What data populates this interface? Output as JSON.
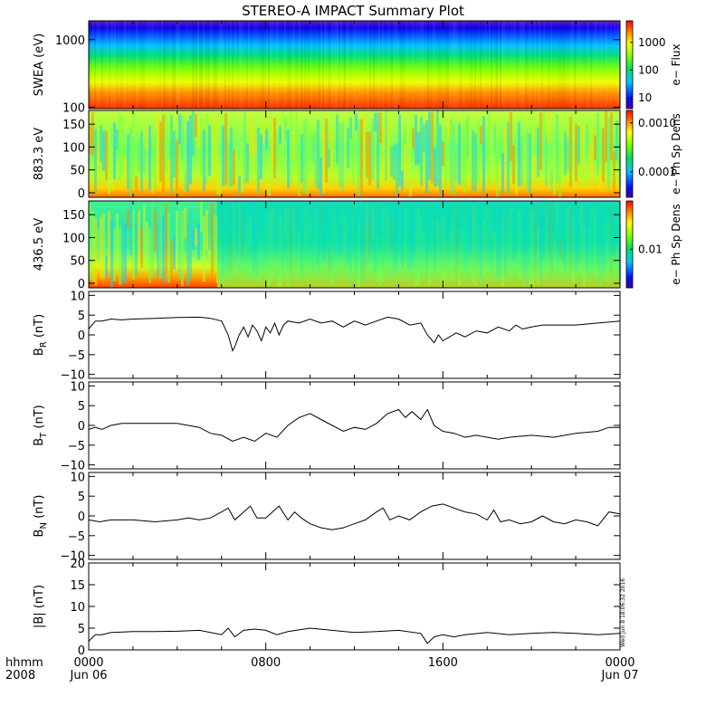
{
  "title": "STEREO-A IMPACT Summary Plot",
  "stamp": "Wed Jun  8 18:06:32 2016",
  "time_axis": {
    "left_label_1": "hhmm",
    "left_label_2": "2008",
    "range_hours": [
      0,
      24
    ],
    "ticks": [
      {
        "hour": 0,
        "label": "0000",
        "sublabel": "Jun 06"
      },
      {
        "hour": 8,
        "label": "0800",
        "sublabel": ""
      },
      {
        "hour": 16,
        "label": "1600",
        "sublabel": ""
      },
      {
        "hour": 24,
        "label": "0000",
        "sublabel": "Jun 07"
      }
    ]
  },
  "chart_data": [
    {
      "type": "heatmap",
      "id": "swea",
      "ylabel": "SWEA (eV)",
      "yscale": "log",
      "ylim": [
        95,
        1900
      ],
      "yticks": [
        {
          "v": 100,
          "label": "100"
        },
        {
          "v": 1000,
          "label": "1000"
        }
      ],
      "colorbar": {
        "label": "e− Flux",
        "scale": "log",
        "range": [
          4,
          6000
        ],
        "ticks": [
          {
            "v": 10,
            "label": "10"
          },
          {
            "v": 100,
            "label": "100"
          },
          {
            "v": 1000,
            "label": "1000"
          }
        ]
      }
    },
    {
      "type": "heatmap",
      "id": "pad883",
      "ylabel": "883.3 eV",
      "yscale": "linear",
      "ylim": [
        -10,
        180
      ],
      "yticks": [
        {
          "v": 0,
          "label": "0"
        },
        {
          "v": 50,
          "label": "50"
        },
        {
          "v": 100,
          "label": "100"
        },
        {
          "v": 150,
          "label": "150"
        }
      ],
      "colorbar": {
        "label": "e− Ph Sp Dens",
        "scale": "log",
        "range": [
          3e-05,
          0.0018
        ],
        "ticks": [
          {
            "v": 0.0001,
            "label": "0.0001"
          },
          {
            "v": 0.001,
            "label": "0.0010"
          }
        ]
      }
    },
    {
      "type": "heatmap",
      "id": "pad436",
      "ylabel": "436.5 eV",
      "yscale": "linear",
      "ylim": [
        -10,
        180
      ],
      "yticks": [
        {
          "v": 0,
          "label": "0"
        },
        {
          "v": 50,
          "label": "50"
        },
        {
          "v": 100,
          "label": "100"
        },
        {
          "v": 150,
          "label": "150"
        }
      ],
      "colorbar": {
        "label": "e− Ph Sp Dens",
        "scale": "log",
        "range": [
          0.003,
          0.045
        ],
        "ticks": [
          {
            "v": 0.01,
            "label": "0.01"
          }
        ]
      }
    },
    {
      "type": "line",
      "id": "br",
      "ylabel": "BR",
      "ylabel_main": "B",
      "ylabel_sub": "R",
      "ylabel_unit": " (nT)",
      "ylim": [
        -11,
        11
      ],
      "yticks": [
        {
          "v": -10,
          "label": "−10"
        },
        {
          "v": -5,
          "label": "−5"
        },
        {
          "v": 0,
          "label": "0"
        },
        {
          "v": 5,
          "label": "5"
        },
        {
          "v": 10,
          "label": "10"
        }
      ],
      "x": [
        0,
        0.3,
        0.6,
        1,
        1.5,
        2,
        3,
        4,
        5,
        5.5,
        6,
        6.3,
        6.5,
        6.6,
        6.8,
        7,
        7.2,
        7.4,
        7.6,
        7.8,
        8,
        8.2,
        8.4,
        8.6,
        8.8,
        9,
        9.5,
        10,
        10.5,
        11,
        11.5,
        12,
        12.5,
        13,
        13.5,
        14,
        14.5,
        15,
        15.3,
        15.6,
        15.8,
        16,
        16.3,
        16.6,
        17,
        17.5,
        18,
        18.5,
        19,
        19.3,
        19.6,
        20,
        20.5,
        21,
        22,
        23,
        24
      ],
      "y": [
        1.5,
        3.5,
        3.5,
        4,
        3.8,
        4,
        4.2,
        4.4,
        4.5,
        4.2,
        3.5,
        0,
        -4,
        -3,
        0,
        2,
        -0.5,
        2.5,
        1,
        -1.5,
        2,
        0.5,
        3,
        0,
        2.5,
        3.5,
        3,
        4,
        3,
        3.5,
        2,
        3.5,
        2.5,
        3.5,
        4.5,
        4,
        2.5,
        3,
        0,
        -2,
        0,
        -1.5,
        -0.5,
        0.5,
        -0.5,
        1,
        0.5,
        2,
        1,
        2.5,
        1.5,
        2,
        2.5,
        2.5,
        2.5,
        3,
        3.5
      ]
    },
    {
      "type": "line",
      "id": "bt",
      "ylabel": "BT",
      "ylabel_main": "B",
      "ylabel_sub": "T",
      "ylabel_unit": " (nT)",
      "ylim": [
        -11,
        11
      ],
      "yticks": [
        {
          "v": -10,
          "label": "−10"
        },
        {
          "v": -5,
          "label": "−5"
        },
        {
          "v": 0,
          "label": "0"
        },
        {
          "v": 5,
          "label": "5"
        },
        {
          "v": 10,
          "label": "10"
        }
      ],
      "x": [
        0,
        0.3,
        0.6,
        1,
        1.5,
        2,
        3,
        4,
        4.5,
        5,
        5.5,
        6,
        6.5,
        7,
        7.5,
        8,
        8.5,
        9,
        9.5,
        10,
        10.5,
        11,
        11.5,
        12,
        12.5,
        13,
        13.5,
        14,
        14.3,
        14.6,
        15,
        15.3,
        15.6,
        16,
        16.5,
        17,
        17.5,
        18,
        18.5,
        19,
        20,
        21,
        22,
        23,
        23.5,
        24
      ],
      "y": [
        -1,
        -0.5,
        -1,
        0,
        0.5,
        0.5,
        0.5,
        0.5,
        0,
        -0.5,
        -2,
        -2.5,
        -4,
        -3,
        -4,
        -2,
        -3,
        0,
        2,
        3,
        1.5,
        0,
        -1.5,
        -0.5,
        -1,
        0.5,
        3,
        4,
        2,
        3.5,
        1.5,
        4,
        0,
        -1.5,
        -2,
        -3,
        -2.5,
        -3,
        -3.5,
        -3,
        -2.5,
        -3,
        -2,
        -1.5,
        -0.5,
        -0.5
      ]
    },
    {
      "type": "line",
      "id": "bn",
      "ylabel": "BN",
      "ylabel_main": "B",
      "ylabel_sub": "N",
      "ylabel_unit": " (nT)",
      "ylim": [
        -11,
        11
      ],
      "yticks": [
        {
          "v": -10,
          "label": "−10"
        },
        {
          "v": -5,
          "label": "−5"
        },
        {
          "v": 0,
          "label": "0"
        },
        {
          "v": 5,
          "label": "5"
        },
        {
          "v": 10,
          "label": "10"
        }
      ],
      "x": [
        0,
        0.5,
        1,
        2,
        3,
        4,
        4.5,
        5,
        5.5,
        6,
        6.3,
        6.6,
        7,
        7.3,
        7.6,
        8,
        8.3,
        8.6,
        9,
        9.3,
        9.6,
        10,
        10.5,
        11,
        11.5,
        12,
        12.5,
        13,
        13.3,
        13.6,
        14,
        14.5,
        15,
        15.5,
        16,
        16.5,
        17,
        17.5,
        18,
        18.3,
        18.6,
        19,
        19.5,
        20,
        20.5,
        21,
        21.5,
        22,
        22.5,
        23,
        23.5,
        24
      ],
      "y": [
        -1,
        -1.5,
        -1,
        -1,
        -1.5,
        -1,
        -0.5,
        -1,
        -0.5,
        1,
        2,
        -1,
        1,
        2.5,
        -0.5,
        -0.5,
        1,
        2.5,
        -1,
        1,
        -0.5,
        -2,
        -3,
        -3.5,
        -3,
        -2,
        -1,
        1,
        2,
        -1,
        0,
        -1,
        1,
        2.5,
        3,
        2,
        1,
        0.5,
        -1,
        1.5,
        -1.5,
        -1,
        -2,
        -1.5,
        0,
        -1.5,
        -2,
        -1,
        -1.5,
        -2.5,
        1,
        0.5
      ]
    },
    {
      "type": "line",
      "id": "bmag",
      "ylabel": "|B| (nT)",
      "ylim": [
        0,
        20
      ],
      "yticks": [
        {
          "v": 0,
          "label": "0"
        },
        {
          "v": 5,
          "label": "5"
        },
        {
          "v": 10,
          "label": "10"
        },
        {
          "v": 15,
          "label": "15"
        },
        {
          "v": 20,
          "label": "20"
        }
      ],
      "x": [
        0,
        0.3,
        0.6,
        1,
        2,
        3,
        4,
        5,
        5.5,
        6,
        6.3,
        6.6,
        7,
        7.5,
        8,
        8.5,
        9,
        10,
        11,
        12,
        13,
        14,
        15,
        15.3,
        15.6,
        16,
        16.5,
        17,
        18,
        19,
        20,
        21,
        22,
        23,
        24
      ],
      "y": [
        2,
        3.5,
        3.5,
        4,
        4.2,
        4.2,
        4.3,
        4.5,
        4,
        3.5,
        5,
        3,
        4.5,
        4.8,
        4.5,
        3.5,
        4.2,
        5,
        4.5,
        4,
        4.2,
        4.5,
        3.8,
        1.5,
        3,
        3.5,
        3,
        3.5,
        4,
        3.5,
        3.8,
        4,
        3.8,
        3.5,
        3.8
      ]
    }
  ]
}
